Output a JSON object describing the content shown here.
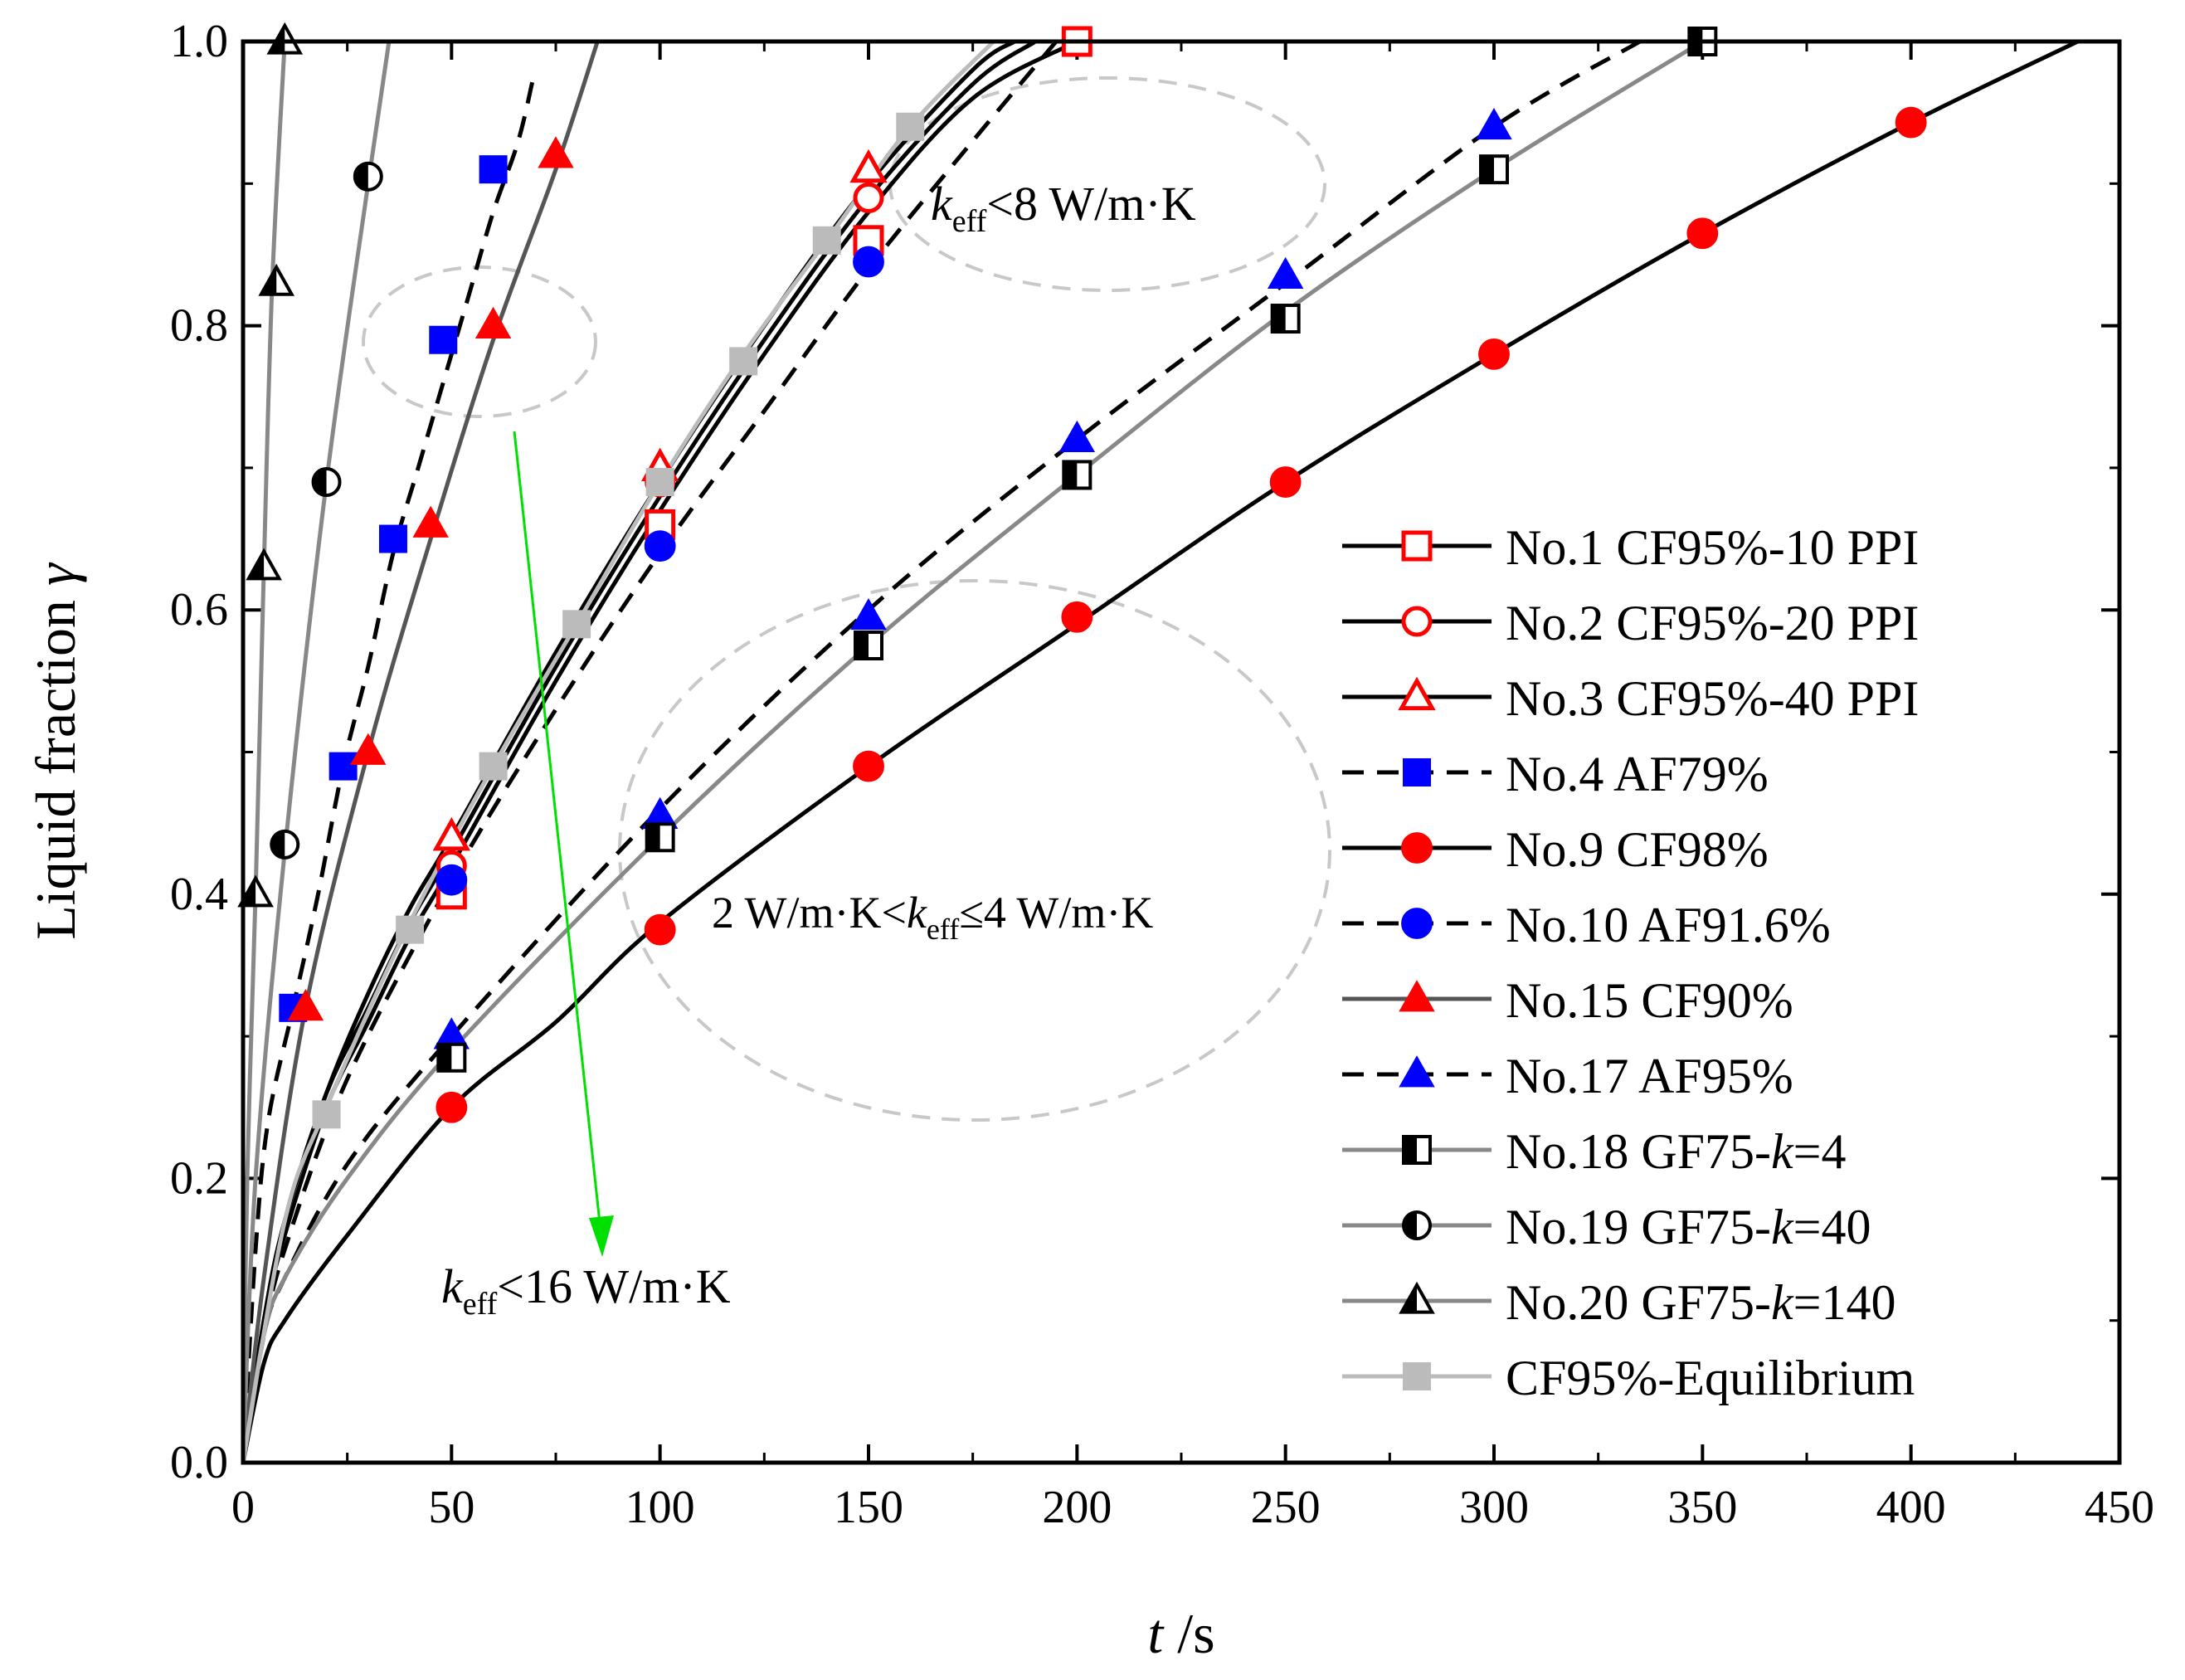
{
  "chart_data": {
    "type": "line",
    "xlabel": "t",
    "xlabel_unit": " /s",
    "ylabel": "Liquid fraction ",
    "ylabel_symbol": "γ",
    "xlim": [
      0,
      450
    ],
    "ylim": [
      0,
      1.0
    ],
    "x_ticks": [
      0,
      50,
      100,
      150,
      200,
      250,
      300,
      350,
      400,
      450
    ],
    "y_ticks": [
      0.0,
      0.2,
      0.4,
      0.6,
      0.8,
      1.0
    ],
    "y_tick_labels": [
      "0.0",
      "0.2",
      "0.4",
      "0.6",
      "0.8",
      "1.0"
    ],
    "legend_position": "right",
    "series": [
      {
        "name": "No.1  CF95%-10 PPI",
        "label_parts": [
          "No.1  CF95%-10 PPI"
        ],
        "line_color": "#000000",
        "dash": "solid",
        "marker": "square-open",
        "marker_color": "#ff0000",
        "curve": [
          [
            0,
            0
          ],
          [
            5,
            0.1
          ],
          [
            10,
            0.16
          ],
          [
            20,
            0.25
          ],
          [
            30,
            0.31
          ],
          [
            40,
            0.37
          ],
          [
            50,
            0.42
          ],
          [
            75,
            0.55
          ],
          [
            100,
            0.67
          ],
          [
            125,
            0.78
          ],
          [
            150,
            0.88
          ],
          [
            175,
            0.96
          ],
          [
            200,
            1.0
          ]
        ],
        "points": [
          [
            50,
            0.4
          ],
          [
            100,
            0.66
          ],
          [
            150,
            0.86
          ],
          [
            200,
            1.0
          ]
        ]
      },
      {
        "name": "No.2  CF95%-20 PPI",
        "label_parts": [
          "No.2  CF95%-20 PPI"
        ],
        "line_color": "#000000",
        "dash": "solid",
        "marker": "circle-open",
        "marker_color": "#ff0000",
        "curve": [
          [
            0,
            0
          ],
          [
            5,
            0.1
          ],
          [
            10,
            0.17
          ],
          [
            20,
            0.26
          ],
          [
            30,
            0.32
          ],
          [
            40,
            0.38
          ],
          [
            50,
            0.43
          ],
          [
            75,
            0.56
          ],
          [
            100,
            0.68
          ],
          [
            125,
            0.79
          ],
          [
            150,
            0.89
          ],
          [
            175,
            0.97
          ],
          [
            190,
            1.0
          ]
        ],
        "points": [
          [
            50,
            0.42
          ],
          [
            100,
            0.69
          ],
          [
            150,
            0.89
          ]
        ]
      },
      {
        "name": "No.3  CF95%-40 PPI",
        "label_parts": [
          "No.3  CF95%-40 PPI"
        ],
        "line_color": "#000000",
        "dash": "solid",
        "marker": "triangle-open",
        "marker_color": "#ff0000",
        "curve": [
          [
            0,
            0
          ],
          [
            5,
            0.1
          ],
          [
            10,
            0.17
          ],
          [
            20,
            0.26
          ],
          [
            30,
            0.33
          ],
          [
            40,
            0.39
          ],
          [
            50,
            0.44
          ],
          [
            75,
            0.57
          ],
          [
            100,
            0.69
          ],
          [
            125,
            0.8
          ],
          [
            150,
            0.9
          ],
          [
            175,
            0.98
          ],
          [
            185,
            1.0
          ]
        ],
        "points": [
          [
            50,
            0.44
          ],
          [
            100,
            0.7
          ],
          [
            150,
            0.91
          ]
        ]
      },
      {
        "name": "No.4  AF79%",
        "label_parts": [
          "No.4  AF79%"
        ],
        "line_color": "#000000",
        "dash": "dashed",
        "marker": "square-filled",
        "marker_color": "#0000ff",
        "curve": [
          [
            0,
            0
          ],
          [
            3,
            0.15
          ],
          [
            6,
            0.24
          ],
          [
            12,
            0.32
          ],
          [
            18,
            0.4
          ],
          [
            24,
            0.49
          ],
          [
            30,
            0.56
          ],
          [
            36,
            0.64
          ],
          [
            42,
            0.7
          ],
          [
            48,
            0.76
          ],
          [
            54,
            0.82
          ],
          [
            60,
            0.88
          ],
          [
            66,
            0.93
          ],
          [
            70,
            0.98
          ]
        ],
        "points": [
          [
            12,
            0.32
          ],
          [
            24,
            0.49
          ],
          [
            36,
            0.65
          ],
          [
            48,
            0.79
          ],
          [
            60,
            0.91
          ]
        ]
      },
      {
        "name": "No.9  CF98%",
        "label_parts": [
          "No.9  CF98%"
        ],
        "line_color": "#000000",
        "dash": "solid",
        "marker": "circle-filled",
        "marker_color": "#ff0000",
        "curve": [
          [
            0,
            0
          ],
          [
            5,
            0.07
          ],
          [
            10,
            0.1
          ],
          [
            25,
            0.16
          ],
          [
            50,
            0.25
          ],
          [
            75,
            0.31
          ],
          [
            100,
            0.38
          ],
          [
            150,
            0.49
          ],
          [
            200,
            0.59
          ],
          [
            250,
            0.69
          ],
          [
            300,
            0.78
          ],
          [
            350,
            0.865
          ],
          [
            400,
            0.943
          ],
          [
            440,
            1.0
          ]
        ],
        "points": [
          [
            50,
            0.25
          ],
          [
            100,
            0.375
          ],
          [
            150,
            0.49
          ],
          [
            200,
            0.595
          ],
          [
            250,
            0.69
          ],
          [
            300,
            0.78
          ],
          [
            350,
            0.865
          ],
          [
            400,
            0.943
          ]
        ]
      },
      {
        "name": "No.10 AF91.6%",
        "label_parts": [
          "No.10 AF91.6%"
        ],
        "line_color": "#000000",
        "dash": "dashed",
        "marker": "circle-filled",
        "marker_color": "#0000ff",
        "curve": [
          [
            0,
            0
          ],
          [
            5,
            0.09
          ],
          [
            10,
            0.15
          ],
          [
            25,
            0.27
          ],
          [
            50,
            0.41
          ],
          [
            75,
            0.53
          ],
          [
            100,
            0.64
          ],
          [
            125,
            0.74
          ],
          [
            150,
            0.84
          ],
          [
            175,
            0.93
          ],
          [
            195,
            1.0
          ]
        ],
        "points": [
          [
            50,
            0.41
          ],
          [
            100,
            0.645
          ],
          [
            150,
            0.845
          ]
        ]
      },
      {
        "name": "No.15 CF90%",
        "label_parts": [
          "No.15 CF90%"
        ],
        "line_color": "#555555",
        "dash": "solid",
        "marker": "triangle-filled",
        "marker_color": "#ff0000",
        "curve": [
          [
            0,
            0
          ],
          [
            5,
            0.13
          ],
          [
            15,
            0.32
          ],
          [
            30,
            0.5
          ],
          [
            45,
            0.65
          ],
          [
            60,
            0.79
          ],
          [
            75,
            0.91
          ],
          [
            85,
            1.0
          ]
        ],
        "points": [
          [
            15,
            0.32
          ],
          [
            30,
            0.5
          ],
          [
            45,
            0.66
          ],
          [
            60,
            0.8
          ],
          [
            75,
            0.92
          ]
        ]
      },
      {
        "name": "No.17 AF95%",
        "label_parts": [
          "No.17 AF95%"
        ],
        "line_color": "#000000",
        "dash": "dashed",
        "marker": "triangle-filled",
        "marker_color": "#0000ff",
        "curve": [
          [
            0,
            0
          ],
          [
            5,
            0.09
          ],
          [
            10,
            0.13
          ],
          [
            25,
            0.21
          ],
          [
            50,
            0.3
          ],
          [
            100,
            0.46
          ],
          [
            150,
            0.6
          ],
          [
            200,
            0.72
          ],
          [
            250,
            0.83
          ],
          [
            300,
            0.94
          ],
          [
            335,
            1.0
          ]
        ],
        "points": [
          [
            50,
            0.3
          ],
          [
            100,
            0.455
          ],
          [
            150,
            0.595
          ],
          [
            200,
            0.72
          ],
          [
            250,
            0.835
          ],
          [
            300,
            0.94
          ]
        ]
      },
      {
        "name": "No.18 GF75-k=4",
        "label_parts": [
          "No.18 GF75-",
          "k",
          "=4"
        ],
        "line_color": "#888888",
        "dash": "solid",
        "marker": "square-half",
        "marker_color": "#000000",
        "curve": [
          [
            0,
            0
          ],
          [
            5,
            0.09
          ],
          [
            10,
            0.13
          ],
          [
            25,
            0.2
          ],
          [
            50,
            0.29
          ],
          [
            100,
            0.44
          ],
          [
            150,
            0.575
          ],
          [
            200,
            0.695
          ],
          [
            250,
            0.81
          ],
          [
            300,
            0.91
          ],
          [
            350,
            1.0
          ]
        ],
        "points": [
          [
            50,
            0.285
          ],
          [
            100,
            0.44
          ],
          [
            150,
            0.575
          ],
          [
            200,
            0.695
          ],
          [
            250,
            0.805
          ],
          [
            300,
            0.91
          ],
          [
            350,
            1.0
          ]
        ]
      },
      {
        "name": "No.19 GF75-k=40",
        "label_parts": [
          "No.19 GF75-",
          "k",
          "=40"
        ],
        "line_color": "#888888",
        "dash": "solid",
        "marker": "circle-half",
        "marker_color": "#000000",
        "curve": [
          [
            0,
            0
          ],
          [
            3,
            0.2
          ],
          [
            10,
            0.43
          ],
          [
            20,
            0.69
          ],
          [
            30,
            0.9
          ],
          [
            35,
            1.0
          ]
        ],
        "points": [
          [
            10,
            0.435
          ],
          [
            20,
            0.69
          ],
          [
            30,
            0.905
          ]
        ]
      },
      {
        "name": "No.20 GF75-k=140",
        "label_parts": [
          "No.20 GF75-",
          "k",
          "=140"
        ],
        "line_color": "#888888",
        "dash": "solid",
        "marker": "triangle-half",
        "marker_color": "#000000",
        "curve": [
          [
            0,
            0
          ],
          [
            1,
            0.2
          ],
          [
            3,
            0.4
          ],
          [
            5,
            0.63
          ],
          [
            7,
            0.83
          ],
          [
            10,
            1.0
          ]
        ],
        "points": [
          [
            3,
            0.4
          ],
          [
            5,
            0.63
          ],
          [
            8,
            0.83
          ],
          [
            10,
            1.0
          ]
        ]
      },
      {
        "name": "CF95%-Equilibrium",
        "label_parts": [
          "CF95%-Equilibrium"
        ],
        "line_color": "#bbbbbb",
        "dash": "solid",
        "marker": "square-filled",
        "marker_color": "#bbbbbb",
        "curve": [
          [
            0,
            0
          ],
          [
            10,
            0.17
          ],
          [
            20,
            0.25
          ],
          [
            40,
            0.38
          ],
          [
            60,
            0.49
          ],
          [
            80,
            0.59
          ],
          [
            100,
            0.69
          ],
          [
            120,
            0.78
          ],
          [
            140,
            0.86
          ],
          [
            160,
            0.94
          ],
          [
            180,
            1.0
          ]
        ],
        "points": [
          [
            20,
            0.245
          ],
          [
            40,
            0.375
          ],
          [
            60,
            0.49
          ],
          [
            80,
            0.59
          ],
          [
            100,
            0.69
          ],
          [
            120,
            0.775
          ],
          [
            140,
            0.86
          ],
          [
            160,
            0.94
          ]
        ]
      }
    ],
    "annotations": [
      {
        "id": "ann-8",
        "parts": [
          "k",
          "eff",
          "<8 W/m·K"
        ]
      },
      {
        "id": "ann-16",
        "parts": [
          "k",
          "eff",
          "<16 W/m·K"
        ]
      },
      {
        "id": "ann-2-4",
        "parts": [
          "2 W/m·K<",
          "k",
          "eff",
          "≤4 W/m·K"
        ]
      }
    ]
  }
}
